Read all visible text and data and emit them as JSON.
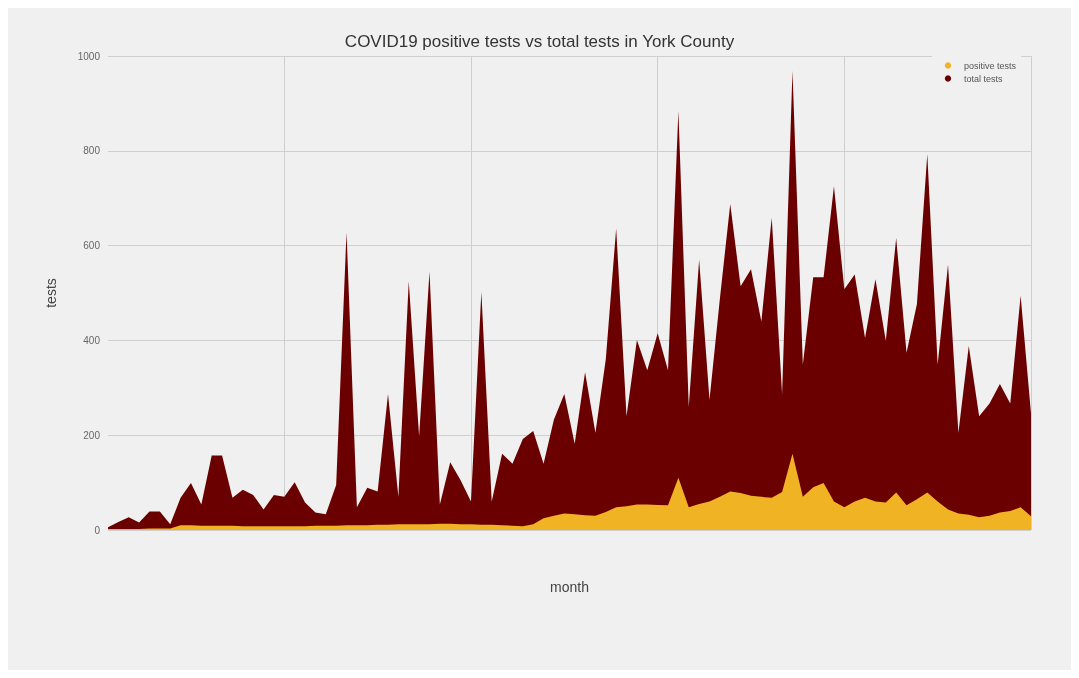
{
  "chart_data": {
    "type": "area",
    "title": "COVID19 positive tests vs total tests in York County",
    "xlabel": "month",
    "ylabel": "tests",
    "categories": [
      null,
      null,
      null,
      null,
      null,
      null,
      null,
      null,
      null,
      null,
      null,
      null,
      null,
      null,
      null,
      null,
      null,
      null,
      null,
      null,
      null,
      null,
      null,
      null,
      null,
      null,
      null,
      null,
      null,
      null,
      null,
      null,
      null,
      null,
      null,
      null,
      null,
      null,
      null,
      null,
      null,
      null,
      null,
      null,
      null,
      null,
      null,
      null,
      null,
      null,
      null,
      null,
      null,
      null,
      null,
      null,
      null,
      null,
      null,
      null,
      null,
      null,
      null,
      null,
      null,
      null,
      null,
      null,
      null,
      null,
      null,
      null,
      null,
      null,
      null,
      null,
      null,
      null,
      null,
      null,
      null,
      null,
      null,
      null,
      null,
      null,
      null,
      null,
      null,
      null
    ],
    "ylim": [
      0,
      1000
    ],
    "yticks": [
      0,
      200,
      400,
      600,
      800,
      1000
    ],
    "grid": true,
    "legend": "top right",
    "series": [
      {
        "name": "positive tests",
        "color": "#f0b323",
        "values": [
          2,
          2,
          2,
          2,
          3,
          3,
          3,
          10,
          10,
          9,
          9,
          9,
          9,
          8,
          8,
          8,
          8,
          8,
          8,
          8,
          9,
          9,
          9,
          10,
          10,
          10,
          11,
          11,
          12,
          12,
          12,
          12,
          13,
          13,
          12,
          12,
          11,
          11,
          10,
          9,
          8,
          12,
          25,
          30,
          35,
          33,
          31,
          30,
          38,
          48,
          50,
          54,
          54,
          53,
          52,
          110,
          48,
          55,
          60,
          70,
          81,
          78,
          72,
          70,
          68,
          80,
          161,
          70,
          90,
          99,
          60,
          48,
          60,
          68,
          60,
          58,
          79,
          52,
          65,
          79,
          60,
          43,
          35,
          32,
          27,
          30,
          37,
          40,
          48,
          29
        ]
      },
      {
        "name": "total tests",
        "color": "#6b0000",
        "values": [
          6,
          17,
          27,
          16,
          39,
          39,
          12,
          68,
          99,
          54,
          157,
          157,
          68,
          85,
          74,
          43,
          74,
          70,
          101,
          58,
          37,
          33,
          95,
          628,
          48,
          89,
          81,
          287,
          70,
          525,
          198,
          545,
          54,
          143,
          105,
          60,
          502,
          60,
          161,
          140,
          192,
          209,
          140,
          233,
          287,
          182,
          333,
          205,
          360,
          636,
          240,
          401,
          337,
          415,
          337,
          884,
          260,
          570,
          275,
          488,
          688,
          514,
          550,
          440,
          659,
          287,
          969,
          349,
          533,
          533,
          725,
          508,
          539,
          405,
          529,
          399,
          616,
          374,
          477,
          793,
          349,
          560,
          205,
          388,
          240,
          267,
          308,
          267,
          494,
          246
        ]
      }
    ]
  }
}
